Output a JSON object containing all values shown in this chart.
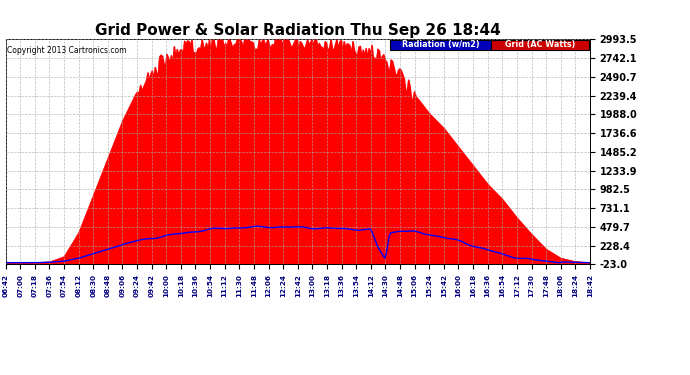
{
  "title": "Grid Power & Solar Radiation Thu Sep 26 18:44",
  "copyright": "Copyright 2013 Cartronics.com",
  "yticks": [
    2993.5,
    2742.1,
    2490.7,
    2239.4,
    1988.0,
    1736.6,
    1485.2,
    1233.9,
    982.5,
    731.1,
    479.7,
    228.4,
    -23.0
  ],
  "ymin": -23.0,
  "ymax": 2993.5,
  "legend_radiation_label": "Radiation (w/m2)",
  "legend_grid_label": "Grid (AC Watts)",
  "radiation_color": "#0000ff",
  "grid_color": "#ff0000",
  "background_color": "#ffffff",
  "plot_bg": "#ffffff",
  "title_fontsize": 11,
  "xtick_labels": [
    "06:42",
    "07:00",
    "07:18",
    "07:36",
    "07:54",
    "08:12",
    "08:30",
    "08:48",
    "09:06",
    "09:24",
    "09:42",
    "10:00",
    "10:18",
    "10:36",
    "10:54",
    "11:12",
    "11:30",
    "11:48",
    "12:06",
    "12:24",
    "12:42",
    "13:00",
    "13:18",
    "13:36",
    "13:54",
    "14:12",
    "14:30",
    "14:48",
    "15:06",
    "15:24",
    "15:42",
    "16:00",
    "16:18",
    "16:36",
    "16:54",
    "17:12",
    "17:30",
    "17:48",
    "18:06",
    "18:24",
    "18:42"
  ]
}
